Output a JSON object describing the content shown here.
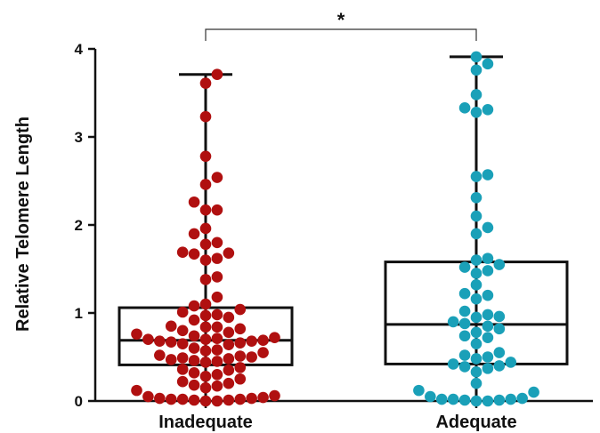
{
  "chart_data": {
    "type": "box-swarm",
    "ylabel": "Relative Telomere Length",
    "ylim": [
      0,
      4
    ],
    "yticks": [
      "0",
      "1",
      "2",
      "3",
      "4"
    ],
    "categories": [
      "Inadequate",
      "Adequate"
    ],
    "significance": "*",
    "groups": [
      {
        "name": "Inadequate",
        "color": "#b01010",
        "box": {
          "min": 0.0,
          "q1": 0.41,
          "median": 0.69,
          "q3": 1.06,
          "max": 3.71
        },
        "points": [
          3.71,
          3.61,
          3.23,
          2.78,
          2.54,
          2.46,
          2.26,
          2.17,
          2.17,
          1.96,
          1.9,
          1.8,
          1.78,
          1.69,
          1.68,
          1.67,
          1.62,
          1.6,
          1.41,
          1.38,
          1.18,
          1.1,
          1.08,
          1.04,
          1.01,
          0.98,
          0.97,
          0.95,
          0.92,
          0.85,
          0.84,
          0.84,
          0.82,
          0.8,
          0.78,
          0.76,
          0.74,
          0.72,
          0.71,
          0.7,
          0.7,
          0.69,
          0.68,
          0.68,
          0.67,
          0.66,
          0.65,
          0.64,
          0.6,
          0.58,
          0.57,
          0.55,
          0.52,
          0.51,
          0.5,
          0.49,
          0.48,
          0.47,
          0.46,
          0.45,
          0.44,
          0.38,
          0.36,
          0.35,
          0.32,
          0.3,
          0.28,
          0.25,
          0.22,
          0.2,
          0.18,
          0.17,
          0.15,
          0.12,
          0.06,
          0.05,
          0.04,
          0.03,
          0.03,
          0.02,
          0.02,
          0.02,
          0.01,
          0.01,
          0.0,
          0.0
        ]
      },
      {
        "name": "Adequate",
        "color": "#1aa0b8",
        "box": {
          "min": 0.0,
          "q1": 0.42,
          "median": 0.87,
          "q3": 1.58,
          "max": 3.91
        },
        "points": [
          3.91,
          3.83,
          3.76,
          3.48,
          3.33,
          3.31,
          3.28,
          2.57,
          2.55,
          2.31,
          2.1,
          1.97,
          1.9,
          1.62,
          1.6,
          1.55,
          1.52,
          1.48,
          1.45,
          1.32,
          1.22,
          1.2,
          1.16,
          1.02,
          0.98,
          0.96,
          0.95,
          0.9,
          0.88,
          0.85,
          0.82,
          0.78,
          0.74,
          0.72,
          0.65,
          0.55,
          0.52,
          0.5,
          0.48,
          0.44,
          0.42,
          0.4,
          0.39,
          0.37,
          0.33,
          0.2,
          0.12,
          0.1,
          0.05,
          0.03,
          0.02,
          0.02,
          0.02,
          0.01,
          0.01,
          0.0,
          0.0
        ]
      }
    ]
  }
}
